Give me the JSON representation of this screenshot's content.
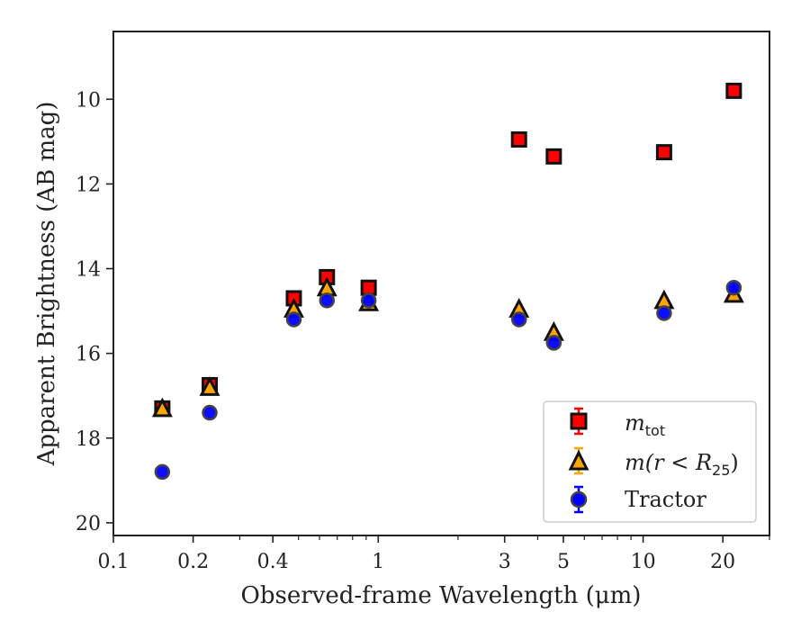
{
  "chart_data": {
    "type": "scatter",
    "title": "",
    "xlabel": "Observed-frame Wavelength (μm)",
    "ylabel": "Apparent Brightness (AB mag)",
    "xscale": "log",
    "xlim": [
      0.1,
      30
    ],
    "ylim": [
      20.3,
      8.4
    ],
    "y_inverted": true,
    "xticks": [
      0.1,
      0.2,
      0.4,
      1,
      3,
      5,
      10,
      20
    ],
    "xtick_labels": [
      "0.1",
      "0.2",
      "0.4",
      "1",
      "3",
      "5",
      "10",
      "20"
    ],
    "yticks": [
      10,
      12,
      14,
      16,
      18,
      20
    ],
    "ytick_labels": [
      "10",
      "12",
      "14",
      "16",
      "18",
      "20"
    ],
    "grid": false,
    "legend": "bottom-right",
    "series": [
      {
        "name": "m_tot",
        "marker": "square",
        "color": "#ff0000",
        "edge": "#111111",
        "x": [
          0.153,
          0.231,
          0.48,
          0.64,
          0.92,
          3.4,
          4.6,
          12.0,
          22.0
        ],
        "y": [
          17.3,
          16.75,
          14.7,
          14.2,
          14.45,
          10.95,
          11.35,
          11.25,
          9.8
        ]
      },
      {
        "name": "m(r < R_25)",
        "marker": "triangle",
        "color": "#ffa500",
        "edge": "#111111",
        "x": [
          0.153,
          0.231,
          0.48,
          0.64,
          0.92,
          3.4,
          4.6,
          12.0,
          22.0
        ],
        "y": [
          17.3,
          16.8,
          14.95,
          14.45,
          14.8,
          14.95,
          15.5,
          14.75,
          14.6
        ]
      },
      {
        "name": "Tractor",
        "marker": "circle",
        "color": "#0000ff",
        "edge": "#444444",
        "x": [
          0.153,
          0.231,
          0.48,
          0.64,
          0.92,
          3.4,
          4.6,
          12.0,
          22.0
        ],
        "y": [
          18.8,
          17.4,
          15.2,
          14.75,
          14.75,
          15.2,
          15.75,
          15.05,
          14.45
        ]
      }
    ],
    "legend_entries": {
      "m_tot_main": "m",
      "m_tot_sub": "tot",
      "r25_main": "m(r < R",
      "r25_sub": "25",
      "r25_close": ")",
      "tractor": "Tractor"
    }
  }
}
